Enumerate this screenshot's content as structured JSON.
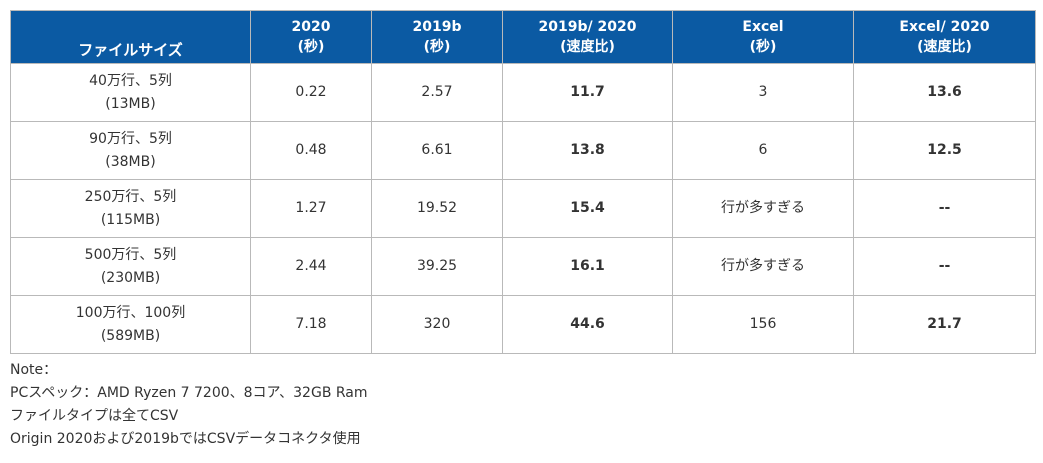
{
  "table": {
    "headers": [
      {
        "line1": "",
        "line2": "ファイルサイズ"
      },
      {
        "line1": "2020",
        "line2": "(秒)"
      },
      {
        "line1": "2019b",
        "line2": "(秒)"
      },
      {
        "line1": "2019b/ 2020",
        "line2": "(速度比)"
      },
      {
        "line1": "Excel",
        "line2": "(秒)"
      },
      {
        "line1": "Excel/ 2020",
        "line2": "(速度比)"
      }
    ],
    "rows": [
      {
        "size": "40万行、5列",
        "mb": "(13MB)",
        "t2020": "0.22",
        "t2019b": "2.57",
        "ratio2019": "11.7",
        "excel": "3",
        "ratioExcel": "13.6"
      },
      {
        "size": "90万行、5列",
        "mb": "(38MB)",
        "t2020": "0.48",
        "t2019b": "6.61",
        "ratio2019": "13.8",
        "excel": "6",
        "ratioExcel": "12.5"
      },
      {
        "size": "250万行、5列",
        "mb": "(115MB)",
        "t2020": "1.27",
        "t2019b": "19.52",
        "ratio2019": "15.4",
        "excel": "行が多すぎる",
        "ratioExcel": "--"
      },
      {
        "size": "500万行、5列",
        "mb": "(230MB)",
        "t2020": "2.44",
        "t2019b": "39.25",
        "ratio2019": "16.1",
        "excel": "行が多すぎる",
        "ratioExcel": "--"
      },
      {
        "size": "100万行、100列",
        "mb": "(589MB)",
        "t2020": "7.18",
        "t2019b": "320",
        "ratio2019": "44.6",
        "excel": "156",
        "ratioExcel": "21.7"
      }
    ]
  },
  "notes": [
    "Note：",
    "PCスペック：AMD Ryzen 7 7200、8コア、32GB Ram",
    "ファイルタイプは全てCSV",
    "Origin 2020および2019bではCSVデータコネクタ使用"
  ]
}
